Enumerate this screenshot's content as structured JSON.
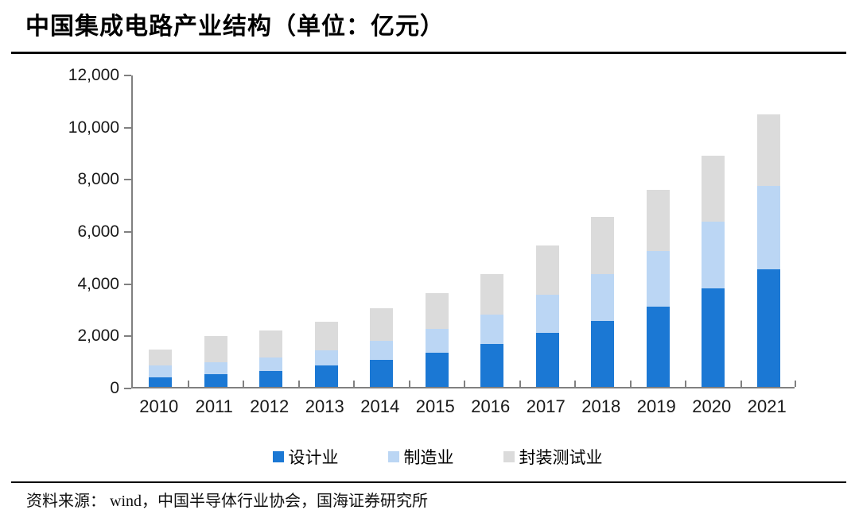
{
  "header": {
    "title": "中国集成电路产业结构（单位：亿元）"
  },
  "chart_data": {
    "type": "bar",
    "stacked": true,
    "title": "中国集成电路产业结构（单位：亿元）",
    "unit": "亿元",
    "categories": [
      "2010",
      "2011",
      "2012",
      "2013",
      "2014",
      "2015",
      "2016",
      "2017",
      "2018",
      "2019",
      "2020",
      "2021"
    ],
    "series": [
      {
        "name": "设计业",
        "key": "design",
        "color": "#1b78d4",
        "values": [
          363.9,
          473.7,
          621.7,
          808.8,
          1047.4,
          1325.0,
          1644.3,
          2073.5,
          2519.3,
          3063.5,
          3778.4,
          4519.0
        ]
      },
      {
        "name": "制造业",
        "key": "manufacturing",
        "color": "#bbd6f4",
        "values": [
          447.1,
          471.1,
          503.2,
          600.9,
          712.1,
          900.8,
          1126.9,
          1448.1,
          1818.2,
          2149.1,
          2560.1,
          3176.3
        ]
      },
      {
        "name": "封装测试业",
        "key": "packaging-testing",
        "color": "#dbdbdb",
        "values": [
          629.2,
          988.9,
          1033.6,
          1098.8,
          1255.9,
          1384.0,
          1564.3,
          1889.7,
          2193.9,
          2349.7,
          2509.5,
          2763.0
        ]
      }
    ],
    "totals": [
      1440.2,
      1933.7,
      2158.5,
      2508.5,
      3015.4,
      3609.8,
      4335.5,
      5411.3,
      6531.4,
      7562.3,
      8848.0,
      10458.3
    ],
    "ylim": [
      0,
      12000
    ],
    "ytick_labels": [
      "0",
      "2,000",
      "4,000",
      "6,000",
      "8,000",
      "10,000",
      "12,000"
    ],
    "xlabel": "",
    "ylabel": "",
    "grid": false,
    "legend_position": "bottom"
  },
  "footer": {
    "text": "资料来源： wind，中国半导体行业协会，国海证券研究所"
  },
  "colors": {
    "axis": "#808080",
    "text": "#1a1a1a",
    "title": "#000000"
  }
}
